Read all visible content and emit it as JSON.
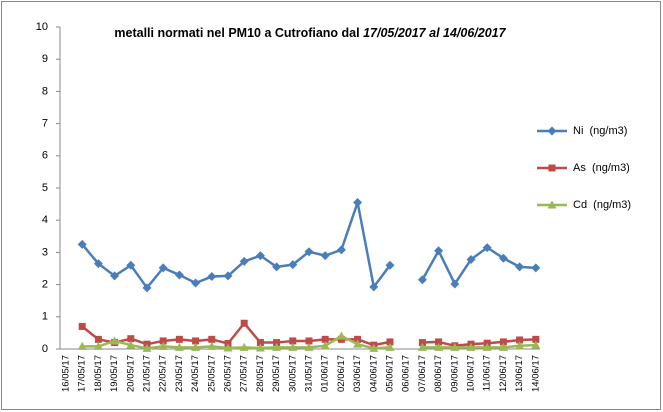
{
  "chart_data": {
    "type": "line",
    "title": [
      "metalli normati nel PM10 a Cutrofiano dal",
      "17/05/2017 al 14/06/2017"
    ],
    "categories": [
      "16/05/17",
      "17/05/17",
      "18/05/17",
      "19/05/17",
      "20/05/17",
      "21/05/17",
      "22/05/17",
      "23/05/17",
      "24/05/17",
      "25/05/17",
      "26/05/17",
      "27/05/17",
      "28/05/17",
      "29/05/17",
      "30/05/17",
      "31/05/17",
      "01/06/17",
      "02/06/17",
      "03/06/17",
      "04/06/17",
      "05/06/17",
      "06/06/17",
      "07/06/17",
      "08/06/17",
      "09/06/17",
      "10/06/17",
      "11/06/17",
      "12/06/17",
      "13/06/17",
      "14/06/17"
    ],
    "series": [
      {
        "name": "Ni  (ng/m3)",
        "color": "#4a7ebb",
        "marker": "diamond",
        "values": [
          null,
          3.25,
          2.65,
          2.27,
          2.6,
          1.9,
          2.52,
          2.3,
          2.05,
          2.25,
          2.27,
          2.72,
          2.9,
          2.55,
          2.62,
          3.02,
          2.9,
          3.08,
          4.55,
          1.93,
          2.6,
          null,
          2.15,
          3.05,
          2.02,
          2.78,
          3.15,
          2.82,
          2.55,
          2.52
        ]
      },
      {
        "name": "As  (ng/m3)",
        "color": "#be4b48",
        "marker": "square",
        "values": [
          null,
          0.7,
          0.3,
          0.2,
          0.32,
          0.15,
          0.25,
          0.3,
          0.25,
          0.3,
          0.17,
          0.8,
          0.2,
          0.2,
          0.25,
          0.25,
          0.3,
          0.3,
          0.3,
          0.12,
          0.22,
          null,
          0.2,
          0.22,
          0.1,
          0.15,
          0.18,
          0.22,
          0.28,
          0.3
        ]
      },
      {
        "name": "Cd  (ng/m3)",
        "color": "#98b954",
        "marker": "triangle",
        "values": [
          null,
          0.08,
          0.08,
          0.25,
          0.12,
          0.02,
          0.08,
          0.05,
          0.05,
          0.08,
          0.03,
          0.05,
          0.03,
          0.05,
          0.05,
          0.05,
          0.1,
          0.4,
          0.15,
          0.02,
          0.05,
          null,
          0.05,
          0.05,
          0.05,
          0.05,
          0.05,
          0.05,
          0.1,
          0.12
        ]
      }
    ],
    "ylim": [
      0,
      10
    ],
    "yticks": [
      0,
      1,
      2,
      3,
      4,
      5,
      6,
      7,
      8,
      9,
      10
    ],
    "grid": false,
    "legend": "right"
  }
}
